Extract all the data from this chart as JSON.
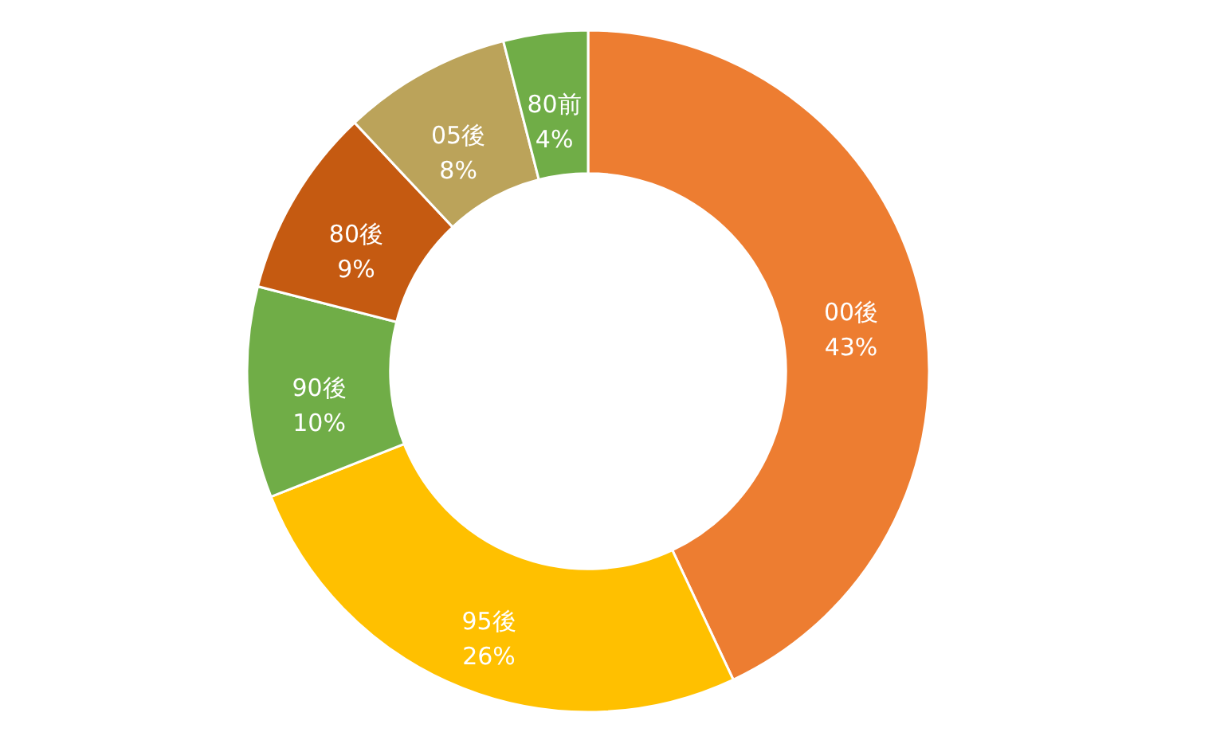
{
  "chart_data": {
    "type": "donut",
    "categories": [
      "00後",
      "95後",
      "90後",
      "80後",
      "05後",
      "80前"
    ],
    "values": [
      43,
      26,
      10,
      9,
      8,
      4
    ],
    "value_labels": [
      "43%",
      "26%",
      "10%",
      "9%",
      "8%",
      "4%"
    ],
    "colors": [
      "#ed7d31",
      "#ffc000",
      "#70ad47",
      "#c55a11",
      "#bba35a",
      "#70ad47"
    ]
  }
}
